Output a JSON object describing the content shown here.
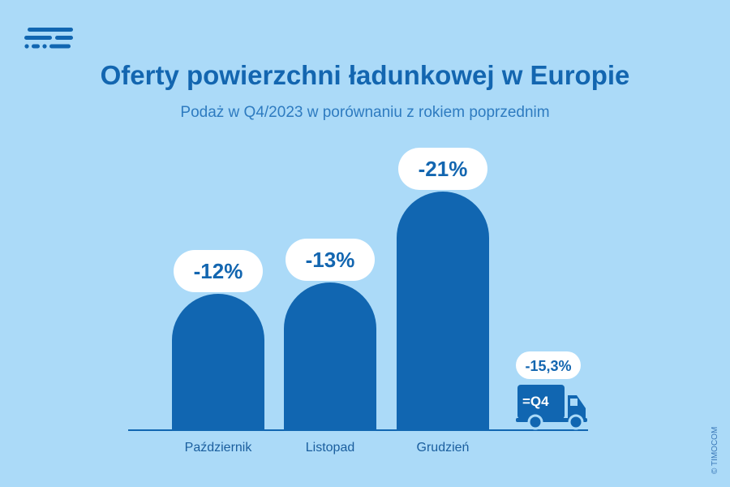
{
  "header": {
    "title": "Oferty powierzchni ładunkowej w Europie",
    "subtitle": "Podaż w Q4/2023 w porównaniu z rokiem poprzednim",
    "copyright": "© TIMOCOM"
  },
  "colors": {
    "background": "#abdaf8",
    "bar": "#1166b1",
    "label_bg": "#ffffff",
    "text": "#1366b0"
  },
  "chart_data": {
    "type": "bar",
    "categories": [
      "Październik",
      "Listopad",
      "Grudzień"
    ],
    "values": [
      -12,
      -13,
      -21
    ],
    "value_labels": [
      "-12%",
      "-13%",
      "-21%"
    ],
    "summary": {
      "label": "=Q4",
      "value": -15.3,
      "value_label": "-15,3%",
      "icon": "truck-icon"
    },
    "title": "Oferty powierzchni ładunkowej w Europie",
    "subtitle": "Podaż w Q4/2023 w porównaniu z rokiem poprzednim",
    "xlabel": "",
    "ylabel": "",
    "grid": false
  }
}
